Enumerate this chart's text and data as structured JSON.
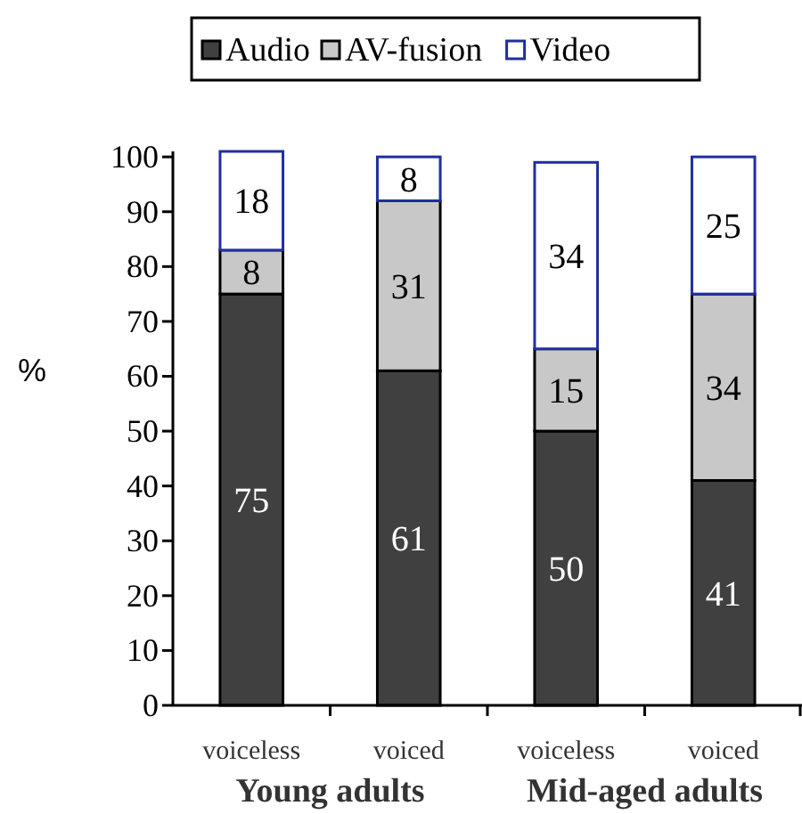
{
  "chart_data": {
    "type": "bar",
    "stacked": true,
    "ylabel": "%",
    "categories": [
      "voiceless",
      "voiced",
      "voiceless",
      "voiced"
    ],
    "series": [
      {
        "name": "Audio",
        "color": "#404040",
        "values": [
          75,
          61,
          50,
          41
        ]
      },
      {
        "name": "AV-fusion",
        "color": "#c8c8c8",
        "values": [
          8,
          31,
          15,
          34
        ]
      },
      {
        "name": "Video",
        "color": "#ffffff",
        "values": [
          18,
          8,
          34,
          25
        ]
      }
    ],
    "ylim": [
      0,
      101
    ],
    "yticks": [
      0,
      10,
      20,
      30,
      40,
      50,
      60,
      70,
      80,
      90,
      100
    ],
    "data_labels": true,
    "legend": "top",
    "grid": false,
    "annotations": [
      "Young adults",
      "Mid-aged adults"
    ]
  }
}
